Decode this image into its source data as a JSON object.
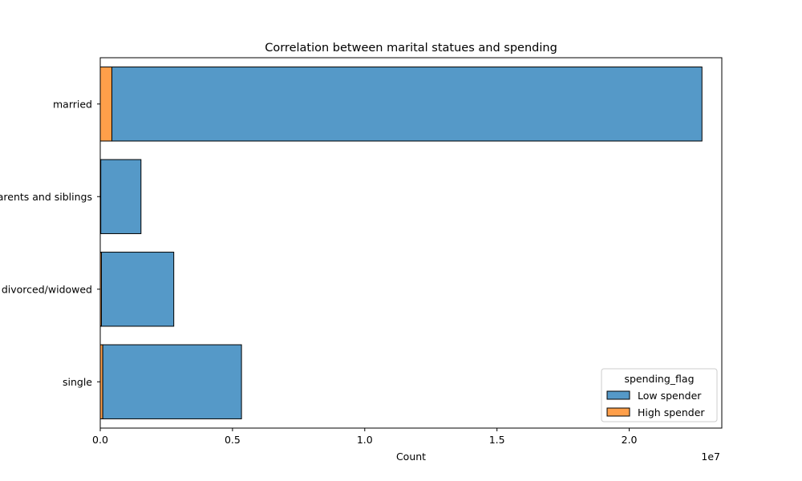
{
  "chart_data": {
    "type": "bar",
    "orientation": "horizontal",
    "stacked": true,
    "title": "Correlation between marital statues and spending",
    "xlabel": "Count",
    "ylabel": "",
    "x_offset_label": "1e7",
    "categories": [
      "married",
      "living with parents and siblings",
      "divorced/widowed",
      "single"
    ],
    "series": [
      {
        "name": "High spender",
        "color": "#ff9f4a",
        "values": [
          440000,
          20000,
          45000,
          95000
        ]
      },
      {
        "name": "Low spender",
        "color": "#5599c8",
        "values": [
          22310000,
          1520000,
          2735000,
          5245000
        ]
      }
    ],
    "xlim": [
      0,
      23500000
    ],
    "xticks": [
      0,
      5000000,
      10000000,
      15000000,
      20000000
    ],
    "xtick_labels": [
      "0.0",
      "0.5",
      "1.0",
      "1.5",
      "2.0"
    ],
    "legend": {
      "title": "spending_flag",
      "placement": "lower-right",
      "entries": [
        {
          "label": "Low spender",
          "color": "#5599c8"
        },
        {
          "label": "High spender",
          "color": "#ff9f4a"
        }
      ]
    },
    "grid": false
  }
}
